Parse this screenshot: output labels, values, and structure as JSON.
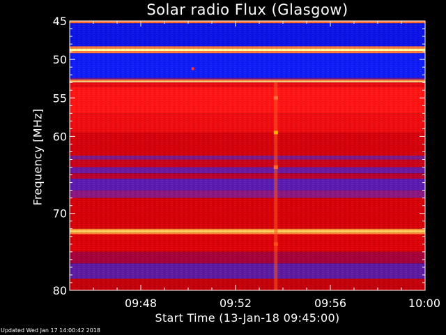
{
  "chart_data": {
    "type": "heatmap",
    "title": "Solar radio Flux (Glasgow)",
    "xlabel": "Start Time (13-Jan-18 09:45:00)",
    "ylabel": "Frequency [MHz]",
    "x_unit": "minutes after 09:45:00",
    "xlim": [
      0,
      15
    ],
    "ylim": [
      45,
      80
    ],
    "y_axis_reversed": true,
    "x_ticks": [
      {
        "value": 3,
        "label": "09:48"
      },
      {
        "value": 7,
        "label": "09:52"
      },
      {
        "value": 11,
        "label": "09:56"
      },
      {
        "value": 15,
        "label": "10:00"
      }
    ],
    "y_ticks": [
      {
        "value": 45,
        "label": "45"
      },
      {
        "value": 50,
        "label": "50"
      },
      {
        "value": 55,
        "label": "55"
      },
      {
        "value": 60,
        "label": "60"
      },
      {
        "value": 70,
        "label": "70"
      },
      {
        "value": 80,
        "label": "80"
      }
    ],
    "color_scale": [
      "#000080",
      "#1414ff",
      "#7a1aa0",
      "#d10000",
      "#ff1010",
      "#ffb000",
      "#ffff90"
    ],
    "frequency_bands": [
      {
        "from": 45.0,
        "to": 45.3,
        "color": "#ff6a2a"
      },
      {
        "from": 45.3,
        "to": 48.3,
        "color": "#0b13e6"
      },
      {
        "from": 48.3,
        "to": 48.6,
        "color": "#ff7a3a"
      },
      {
        "from": 48.6,
        "to": 48.9,
        "color": "#ffffa0"
      },
      {
        "from": 48.9,
        "to": 49.2,
        "color": "#ff7a3a"
      },
      {
        "from": 49.2,
        "to": 52.4,
        "color": "#0f1cf5"
      },
      {
        "from": 52.4,
        "to": 52.6,
        "color": "#6a1a90"
      },
      {
        "from": 52.6,
        "to": 52.8,
        "color": "#ff8040"
      },
      {
        "from": 52.8,
        "to": 53.0,
        "color": "#ffd080"
      },
      {
        "from": 53.0,
        "to": 53.6,
        "color": "#e80a10"
      },
      {
        "from": 53.6,
        "to": 57.0,
        "color": "#ff1414"
      },
      {
        "from": 57.0,
        "to": 59.5,
        "color": "#ee0c10"
      },
      {
        "from": 59.5,
        "to": 62.5,
        "color": "#d4000c"
      },
      {
        "from": 62.5,
        "to": 63.0,
        "color": "#7a1a8a"
      },
      {
        "from": 63.0,
        "to": 64.0,
        "color": "#c8001a"
      },
      {
        "from": 64.0,
        "to": 64.8,
        "color": "#6a1aa0"
      },
      {
        "from": 64.8,
        "to": 65.5,
        "color": "#b8002a"
      },
      {
        "from": 65.5,
        "to": 67.0,
        "color": "#5a1ab0"
      },
      {
        "from": 67.0,
        "to": 68.0,
        "color": "#8a1880"
      },
      {
        "from": 68.0,
        "to": 72.0,
        "color": "#d60008"
      },
      {
        "from": 72.0,
        "to": 72.2,
        "color": "#ff8c30"
      },
      {
        "from": 72.2,
        "to": 72.5,
        "color": "#ffd060"
      },
      {
        "from": 72.5,
        "to": 72.7,
        "color": "#ff8c30"
      },
      {
        "from": 72.7,
        "to": 75.0,
        "color": "#dc0008"
      },
      {
        "from": 75.0,
        "to": 76.5,
        "color": "#a4003a"
      },
      {
        "from": 76.5,
        "to": 78.5,
        "color": "#5c1aa0"
      },
      {
        "from": 78.5,
        "to": 80.0,
        "color": "#c4000a"
      }
    ],
    "burst": {
      "time": 8.7,
      "freq_from": 53.0,
      "freq_to": 80.0,
      "peaks": [
        {
          "freq": 59.5,
          "color": "#ffb000"
        },
        {
          "freq": 55.0,
          "color": "#ff7040"
        },
        {
          "freq": 64.0,
          "color": "#ff6a2a"
        },
        {
          "freq": 74.0,
          "color": "#ff4a1a"
        }
      ]
    },
    "spot": {
      "time": 5.2,
      "freq": 51.2,
      "color": "#ff3030"
    }
  },
  "footer": {
    "updated": "Updated Wed Jan 17 14:00:42 2018"
  }
}
